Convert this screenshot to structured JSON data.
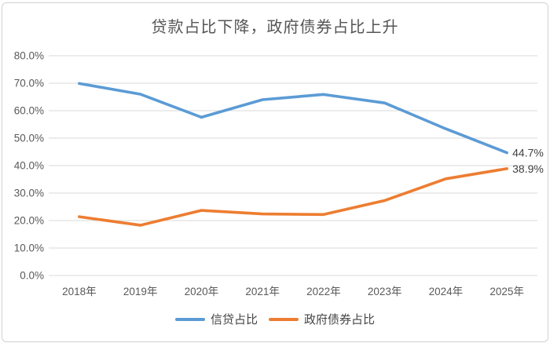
{
  "chart": {
    "title": "贷款占比下降，政府债券占比上升"
  },
  "chart_data": {
    "type": "line",
    "title": "贷款占比下降，政府债券占比上升",
    "categories": [
      "2018年",
      "2019年",
      "2020年",
      "2021年",
      "2022年",
      "2023年",
      "2024年",
      "2025年"
    ],
    "series": [
      {
        "name": "信贷占比",
        "color": "#5B9BD5",
        "values": [
          69.9,
          66.0,
          57.6,
          64.0,
          65.9,
          62.8,
          53.4,
          44.7
        ],
        "end_label": "44.7%"
      },
      {
        "name": "政府债券占比",
        "color": "#ED7D31",
        "values": [
          21.4,
          18.3,
          23.7,
          22.4,
          22.2,
          27.3,
          35.2,
          38.9
        ],
        "end_label": "38.9%"
      }
    ],
    "xlabel": "",
    "ylabel": "",
    "ylim": [
      0,
      80
    ],
    "ytick_step": 10,
    "ytick_labels": [
      "0.0%",
      "10.0%",
      "20.0%",
      "30.0%",
      "40.0%",
      "50.0%",
      "60.0%",
      "70.0%",
      "80.0%"
    ],
    "grid": true,
    "gridline_color": "#D9D9D9",
    "axis_label_color": "#595959",
    "data_label_color": "#404040",
    "legend_position": "bottom"
  }
}
